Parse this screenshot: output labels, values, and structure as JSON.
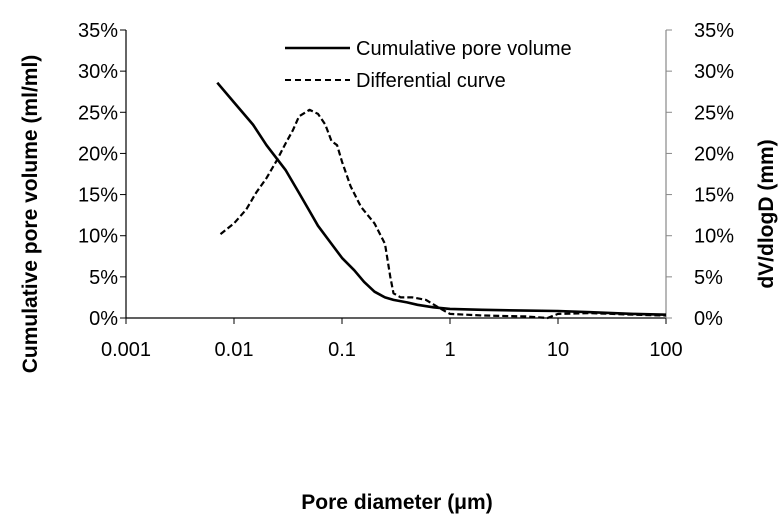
{
  "chart_data": {
    "type": "line",
    "x_scale": "log",
    "xlabel": "Pore diameter (μm)",
    "ylabel_left": "Cumulative pore volume  (ml/ml)",
    "ylabel_right": "dV/dlogD (mm)",
    "xlim": [
      0.001,
      100
    ],
    "ylim_left": [
      0,
      0.35
    ],
    "ylim_right": [
      0,
      0.35
    ],
    "x_ticks": [
      "0.001",
      "0.01",
      "0.1",
      "1",
      "10",
      "100"
    ],
    "y_ticks_left": [
      "0%",
      "5%",
      "10%",
      "15%",
      "20%",
      "25%",
      "30%",
      "35%"
    ],
    "y_ticks_right": [
      "0%",
      "5%",
      "10%",
      "15%",
      "20%",
      "25%",
      "30%",
      "35%"
    ],
    "grid": false,
    "legend_position": "top-center",
    "series": [
      {
        "name": "Cumulative pore volume",
        "style": "solid",
        "color": "#000000",
        "points": [
          [
            0.007,
            0.286
          ],
          [
            0.01,
            0.262
          ],
          [
            0.015,
            0.235
          ],
          [
            0.02,
            0.21
          ],
          [
            0.03,
            0.18
          ],
          [
            0.04,
            0.152
          ],
          [
            0.05,
            0.13
          ],
          [
            0.06,
            0.112
          ],
          [
            0.08,
            0.09
          ],
          [
            0.1,
            0.073
          ],
          [
            0.13,
            0.058
          ],
          [
            0.16,
            0.044
          ],
          [
            0.2,
            0.032
          ],
          [
            0.25,
            0.025
          ],
          [
            0.3,
            0.022
          ],
          [
            0.4,
            0.019
          ],
          [
            0.5,
            0.016
          ],
          [
            0.7,
            0.013
          ],
          [
            1,
            0.011
          ],
          [
            2,
            0.01
          ],
          [
            5,
            0.009
          ],
          [
            10,
            0.0085
          ],
          [
            20,
            0.007
          ],
          [
            50,
            0.005
          ],
          [
            100,
            0.004
          ]
        ]
      },
      {
        "name": "Differential curve",
        "style": "dashed",
        "color": "#000000",
        "points": [
          [
            0.0075,
            0.102
          ],
          [
            0.01,
            0.115
          ],
          [
            0.013,
            0.132
          ],
          [
            0.016,
            0.152
          ],
          [
            0.02,
            0.17
          ],
          [
            0.025,
            0.192
          ],
          [
            0.03,
            0.212
          ],
          [
            0.035,
            0.228
          ],
          [
            0.04,
            0.245
          ],
          [
            0.05,
            0.253
          ],
          [
            0.06,
            0.248
          ],
          [
            0.07,
            0.235
          ],
          [
            0.08,
            0.215
          ],
          [
            0.09,
            0.21
          ],
          [
            0.1,
            0.19
          ],
          [
            0.12,
            0.16
          ],
          [
            0.15,
            0.135
          ],
          [
            0.2,
            0.115
          ],
          [
            0.25,
            0.09
          ],
          [
            0.28,
            0.05
          ],
          [
            0.3,
            0.03
          ],
          [
            0.35,
            0.025
          ],
          [
            0.45,
            0.025
          ],
          [
            0.6,
            0.022
          ],
          [
            0.8,
            0.012
          ],
          [
            1,
            0.005
          ],
          [
            2,
            0.003
          ],
          [
            5,
            0.002
          ],
          [
            8,
            0.0
          ],
          [
            10,
            0.005
          ],
          [
            20,
            0.006
          ],
          [
            50,
            0.004
          ],
          [
            100,
            0.003
          ]
        ]
      }
    ]
  }
}
